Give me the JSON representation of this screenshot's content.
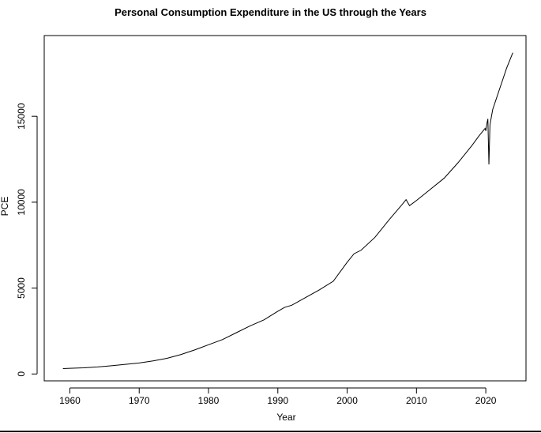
{
  "chart_data": {
    "type": "line",
    "title": "Personal Consumption Expenditure in the US through the Years",
    "xlabel": "Year",
    "ylabel": "PCE",
    "xlim": [
      1956.3,
      2025.8
    ],
    "ylim": [
      -400,
      19700
    ],
    "x_ticks": [
      1960,
      1970,
      1980,
      1990,
      2000,
      2010,
      2020
    ],
    "y_ticks": [
      0,
      5000,
      10000,
      15000
    ],
    "grid": false,
    "legend": "none",
    "line_color": "#000000",
    "series": [
      {
        "x": [
          1959.0,
          1960.0,
          1962.0,
          1964.0,
          1966.0,
          1968.0,
          1970.0,
          1972.0,
          1974.0,
          1976.0,
          1978.0,
          1980.0,
          1982.0,
          1984.0,
          1986.0,
          1988.0,
          1990.0,
          1991.0,
          1992.0,
          1994.0,
          1996.0,
          1998.0,
          2000.0,
          2001.0,
          2002.0,
          2004.0,
          2006.0,
          2008.0,
          2008.5,
          2009.0,
          2010.0,
          2012.0,
          2014.0,
          2016.0,
          2018.0,
          2019.0,
          2019.9,
          2020.0,
          2020.15,
          2020.3,
          2020.45,
          2020.6,
          2021.0,
          2021.5,
          2022.0,
          2022.5,
          2023.0,
          2023.5,
          2023.9
        ],
        "y": [
          310,
          330,
          360,
          410,
          480,
          560,
          640,
          760,
          910,
          1130,
          1400,
          1700,
          2000,
          2400,
          2800,
          3150,
          3650,
          3880,
          4000,
          4450,
          4900,
          5400,
          6500,
          7000,
          7200,
          7950,
          8950,
          9900,
          10150,
          9800,
          10100,
          10750,
          11400,
          12300,
          13300,
          13850,
          14300,
          14150,
          14550,
          14850,
          12200,
          14500,
          15400,
          16000,
          16600,
          17200,
          17800,
          18300,
          18700
        ]
      }
    ]
  }
}
